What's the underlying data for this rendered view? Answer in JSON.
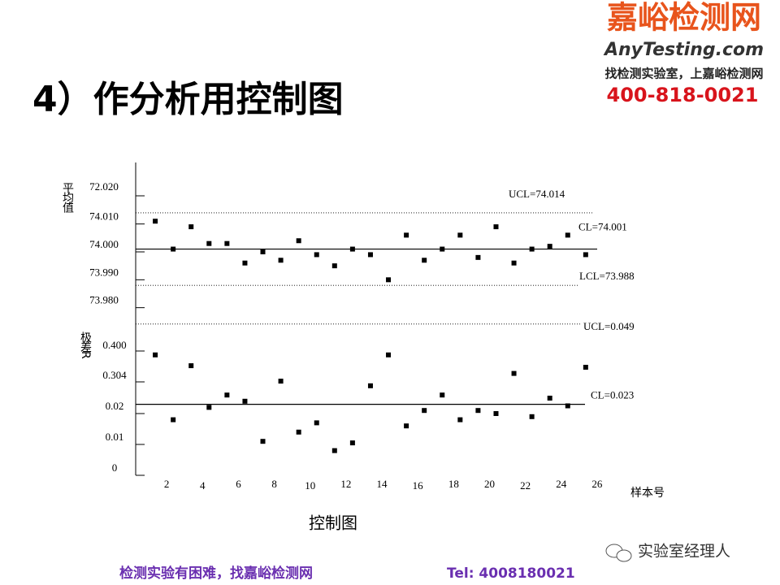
{
  "header": {
    "title": "4）作分析用控制图"
  },
  "logo": {
    "name": "嘉峪检测网",
    "site": "AnyTesting.com",
    "slogan": "找检测实验室，上嘉峪检测网",
    "phone": "400-818-0021"
  },
  "chart_data": [
    {
      "type": "scatter",
      "y_label": "平均值",
      "extra_tick_labels": [
        "72.020"
      ],
      "xlim": [
        0,
        27
      ],
      "ylim": [
        73.97,
        74.03
      ],
      "yticks": [
        {
          "value": 74.01,
          "label": "74.010"
        },
        {
          "value": 74.0,
          "label": "74.000"
        },
        {
          "value": 73.99,
          "label": "73.990"
        },
        {
          "value": 73.98,
          "label": "73.980"
        }
      ],
      "control_lines": [
        {
          "label": "UCL=74.014",
          "value": 74.014,
          "style": "dotted"
        },
        {
          "label": "CL=74.001",
          "value": 74.001,
          "style": "solid"
        },
        {
          "label": "LCL=73.988",
          "value": 73.988,
          "style": "dotted"
        }
      ],
      "x": [
        1,
        2,
        3,
        4,
        5,
        6,
        7,
        8,
        9,
        10,
        11,
        12,
        13,
        14,
        15,
        16,
        17,
        18,
        19,
        20,
        21,
        22,
        23,
        24,
        25
      ],
      "series": [
        {
          "color": "#000000",
          "values": [
            74.011,
            74.001,
            74.009,
            74.003,
            74.003,
            73.996,
            74.0,
            73.997,
            74.004,
            73.999,
            73.995,
            74.001,
            73.999,
            73.99,
            74.006,
            73.997,
            74.001,
            74.006,
            73.998,
            74.009,
            73.996,
            74.001,
            74.002,
            74.006,
            73.999
          ]
        }
      ]
    },
    {
      "type": "scatter",
      "y_label": "极差R",
      "x_label": "样本号",
      "extra_tick_labels": [
        "0.400",
        "0.304"
      ],
      "xlim": [
        0,
        27
      ],
      "ylim": [
        0,
        0.05
      ],
      "yticks": [
        0.02,
        0.01,
        0
      ],
      "xticks": [
        2,
        4,
        6,
        8,
        10,
        12,
        14,
        16,
        18,
        20,
        22,
        24,
        26
      ],
      "control_lines": [
        {
          "label": "UCL=0.049",
          "value": 0.049,
          "style": "dotted"
        },
        {
          "label": "CL=0.023",
          "value": 0.023,
          "style": "solid"
        }
      ],
      "x": [
        1,
        2,
        3,
        4,
        5,
        6,
        7,
        8,
        9,
        10,
        11,
        12,
        13,
        14,
        15,
        16,
        17,
        18,
        19,
        20,
        21,
        22,
        23,
        24,
        25
      ],
      "series": [
        {
          "color": "#000000",
          "values": [
            0.039,
            0.018,
            0.0355,
            0.022,
            0.026,
            0.024,
            0.011,
            0.0305,
            0.014,
            0.017,
            0.008,
            0.0105,
            0.029,
            0.039,
            0.016,
            0.021,
            0.026,
            0.018,
            0.021,
            0.02,
            0.033,
            0.019,
            0.025,
            0.0225,
            0.035
          ]
        }
      ]
    }
  ],
  "caption": "控制图",
  "watermark": "实验室经理人",
  "footer": {
    "text": "检测实验有困难，找嘉峪检测网",
    "tel": "Tel: 4008180021"
  }
}
